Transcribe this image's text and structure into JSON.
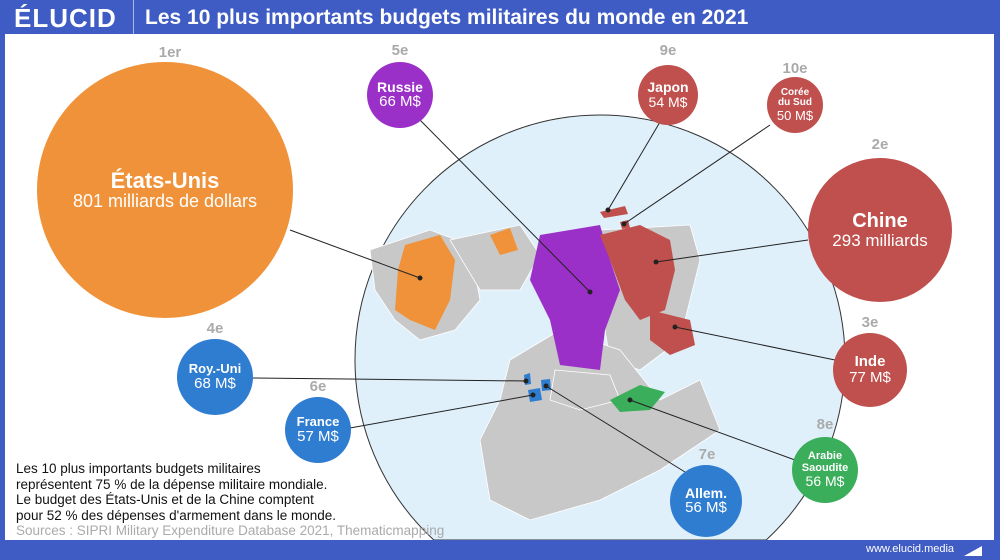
{
  "header": {
    "logo": "ÉLUCID",
    "title": "Les 10 plus importants budgets militaires du monde en 2021"
  },
  "colors": {
    "frame": "#3f5bc4",
    "usa": "#f0923a",
    "russia": "#9b30c8",
    "red": "#c0504d",
    "blue": "#2f7dd1",
    "green": "#3aae5a",
    "ocean": "#dff0fb",
    "land": "#c8c8c8"
  },
  "bubbles": [
    {
      "rank": "1er",
      "name": "États-Unis",
      "value": "801 milliards de dollars"
    },
    {
      "rank": "2e",
      "name": "Chine",
      "value": "293 milliards"
    },
    {
      "rank": "3e",
      "name": "Inde",
      "value": "77 M$"
    },
    {
      "rank": "4e",
      "name": "Roy.-Uni",
      "value": "68 M$"
    },
    {
      "rank": "5e",
      "name": "Russie",
      "value": "66 M$"
    },
    {
      "rank": "6e",
      "name": "France",
      "value": "57 M$"
    },
    {
      "rank": "7e",
      "name": "Allem.",
      "value": "56 M$"
    },
    {
      "rank": "8e",
      "name": "Arabie Saoudite",
      "value": "56 M$"
    },
    {
      "rank": "9e",
      "name": "Japon",
      "value": "54 M$"
    },
    {
      "rank": "10e",
      "name": "Corée du Sud",
      "value": "50 M$"
    }
  ],
  "note": {
    "line1": "Les 10 plus importants budgets militaires",
    "line2": "représentent 75 % de la dépense militaire mondiale.",
    "line3": "Le budget des États-Unis et de la Chine comptent",
    "line4": "pour 52 % des dépenses d'armement dans le monde.",
    "sources": "Sources : SIPRI Military Expenditure Database 2021, Thematicmapping"
  },
  "footer": {
    "url": "www.elucid.media"
  }
}
